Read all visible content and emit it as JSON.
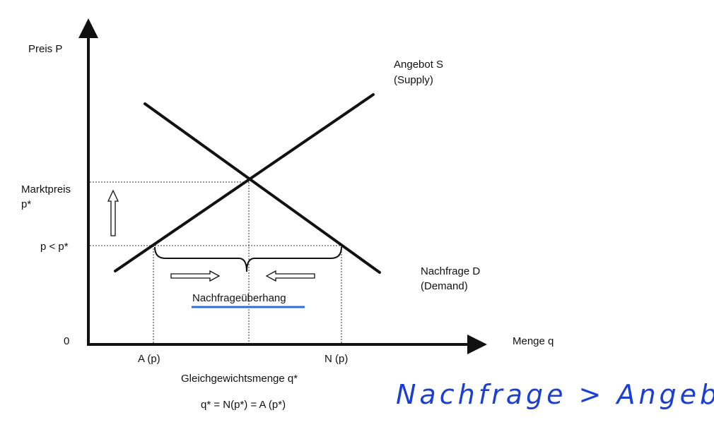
{
  "axes": {
    "y_label": "Preis P",
    "x_label": "Menge q",
    "origin_label": "0"
  },
  "curves": {
    "supply": {
      "name": "Angebot S",
      "name_en": "(Supply)"
    },
    "demand": {
      "name": "Nachfrage D",
      "name_en": "(Demand)"
    }
  },
  "price_levels": {
    "market_price": "Marktpreis",
    "market_price_symbol": "p*",
    "low_price": "p < p*"
  },
  "quantity_levels": {
    "supply_qty": "A (p)",
    "demand_qty": "N (p)",
    "equilibrium_qty": "Gleichgewichtsmenge q*",
    "equilibrium_formula": "q* = N(p*) = A (p*)"
  },
  "gap_label": "Nachfrageüberhang",
  "annotation": "Nachfrage > Angebot",
  "colors": {
    "lines": "#111111",
    "underline": "#2a6fdb",
    "handwriting": "#1a3fd6"
  }
}
